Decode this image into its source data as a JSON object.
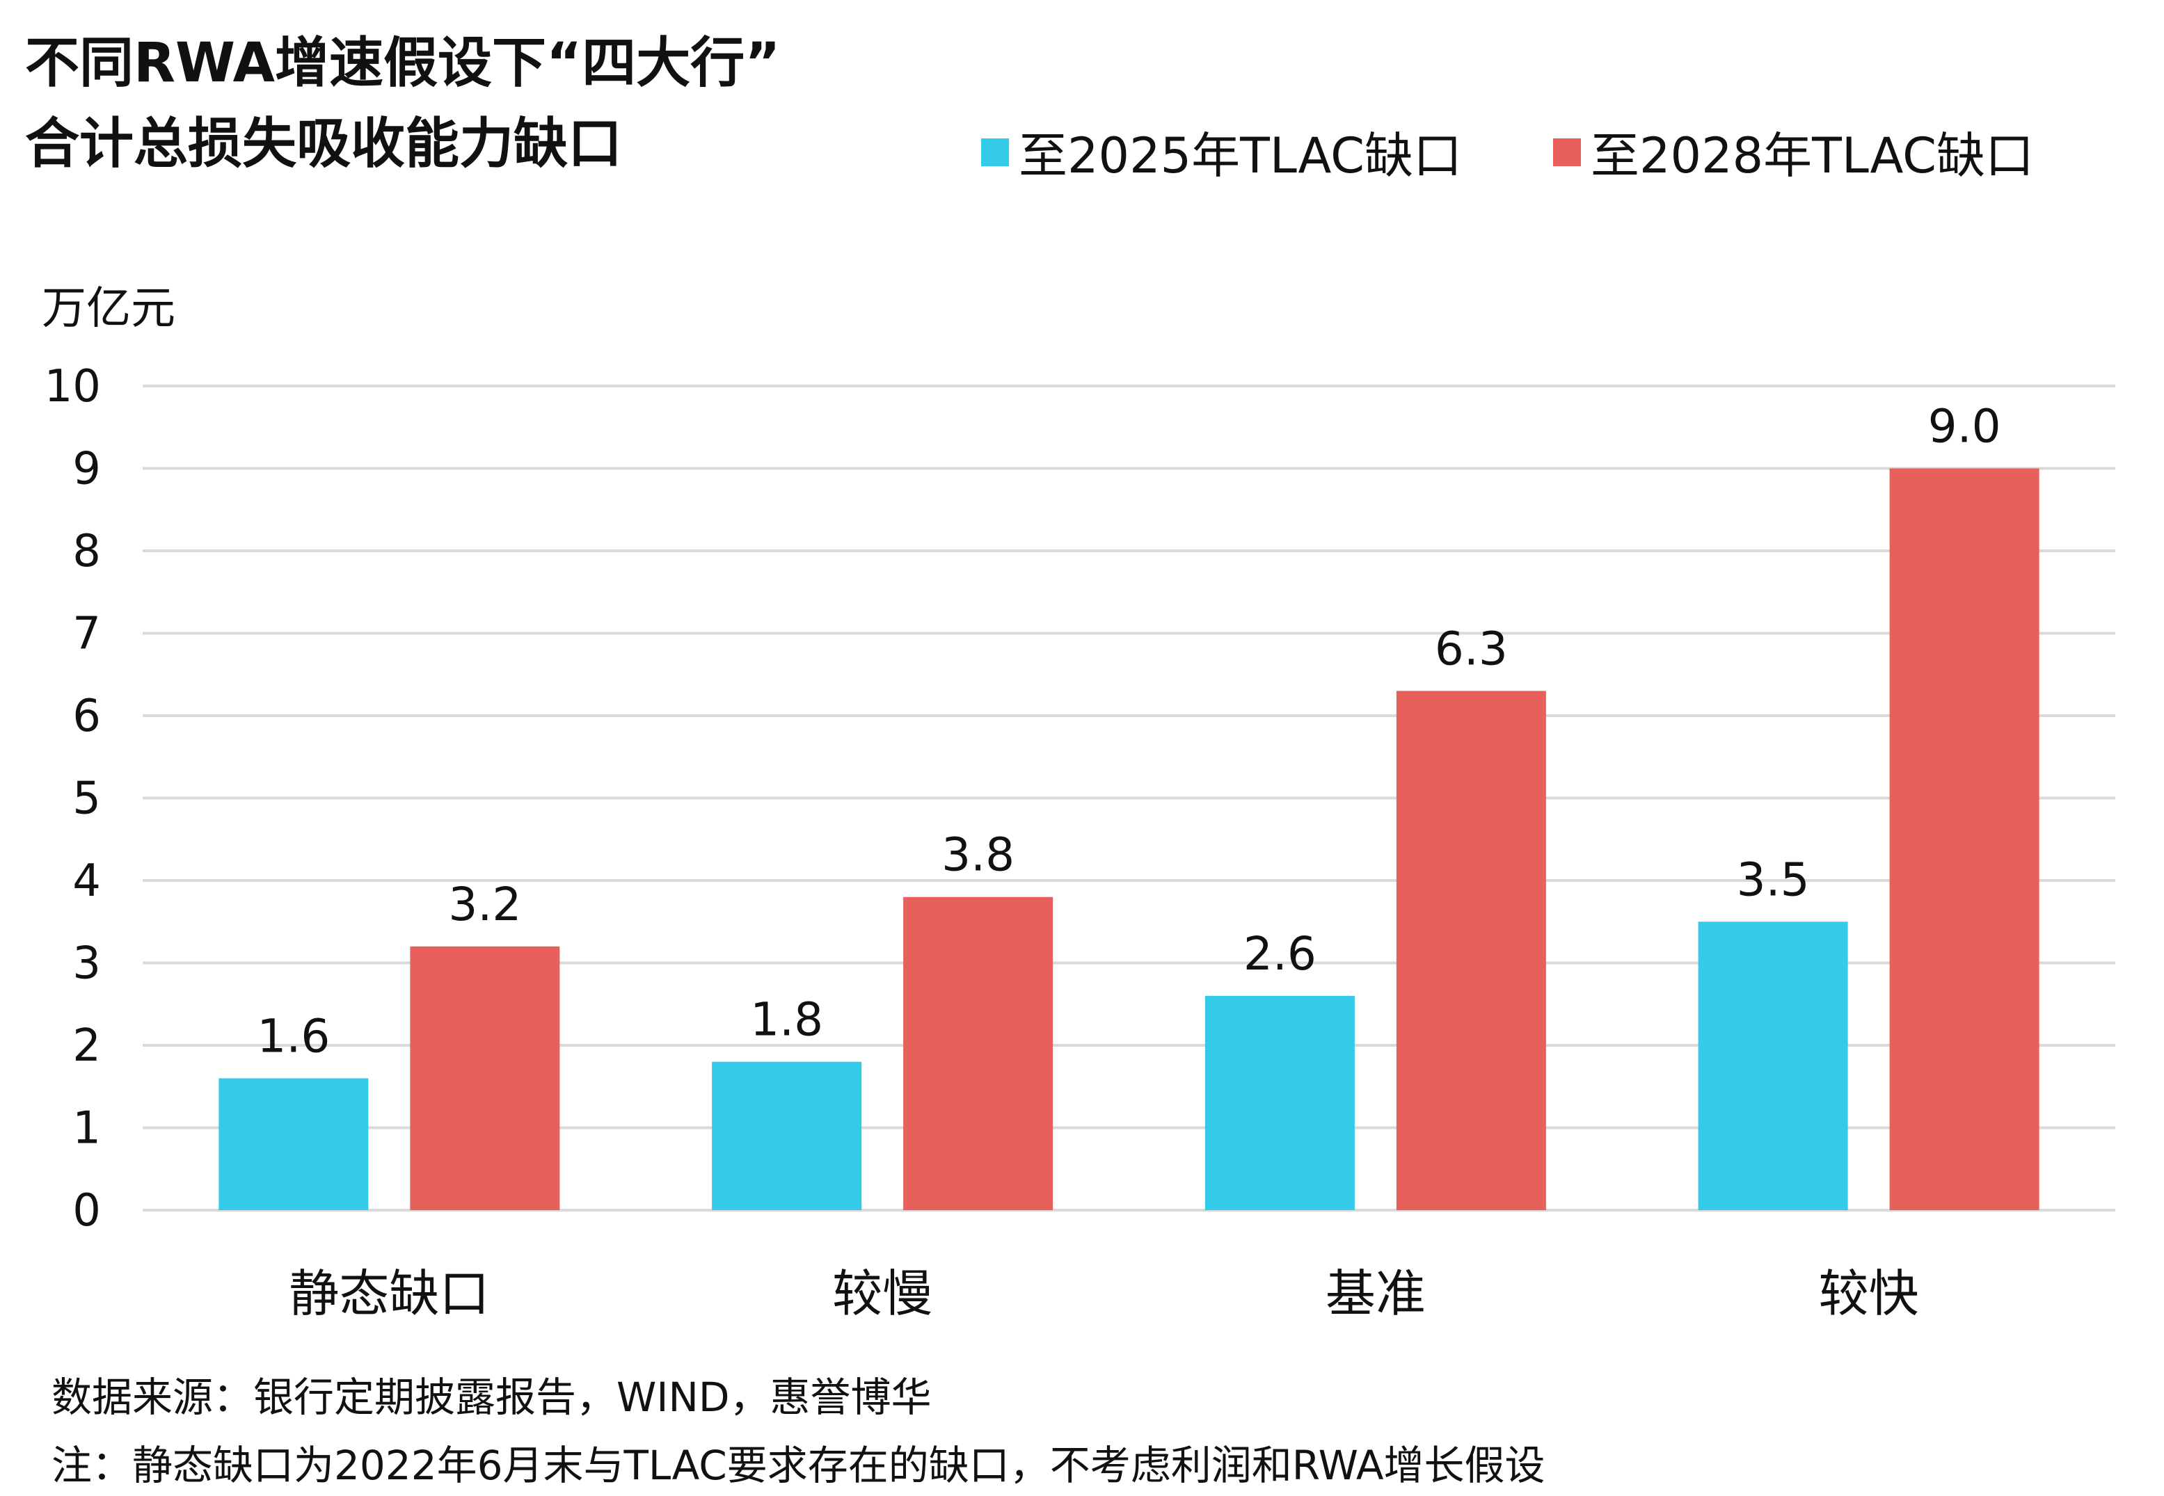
{
  "title": [
    "不同RWA增速假设下“四大行”",
    "合计总损失吸收能力缺口"
  ],
  "colors": {
    "series_2025": "#33cbe8",
    "series_2028": "#e8605b",
    "grid": "#d9d9d9",
    "text": "#111111"
  },
  "chart_data": {
    "type": "bar",
    "ylabel": "万亿元",
    "ylim": [
      0,
      10
    ],
    "yticks": [
      0,
      1,
      2,
      3,
      4,
      5,
      6,
      7,
      8,
      9,
      10
    ],
    "grid": true,
    "legend_position": "top-right",
    "categories": [
      "静态缺口",
      "较慢",
      "基准",
      "较快"
    ],
    "series": [
      {
        "name": "至2025年TLAC缺口",
        "values": [
          1.6,
          1.8,
          2.6,
          3.5
        ],
        "labels": [
          "1.6",
          "1.8",
          "2.6",
          "3.5"
        ],
        "color": "#33cbe8"
      },
      {
        "name": "至2028年TLAC缺口",
        "values": [
          3.2,
          3.8,
          6.3,
          9.0
        ],
        "labels": [
          "3.2",
          "3.8",
          "6.3",
          "9.0"
        ],
        "color": "#e8605b"
      }
    ]
  },
  "footer": {
    "source": "数据来源：银行定期披露报告，WIND，惠誉博华",
    "note": "注：静态缺口为2022年6月末与TLAC要求存在的缺口，不考虑利润和RWA增长假设"
  }
}
